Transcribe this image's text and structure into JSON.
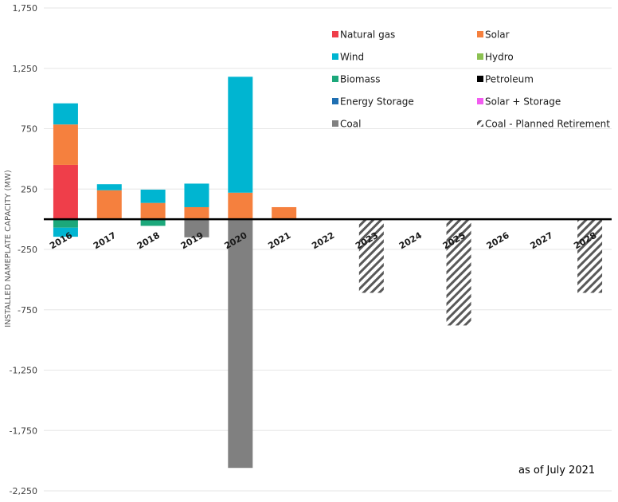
{
  "chart_data": {
    "type": "bar",
    "stacked": true,
    "ylabel": "INSTALLED NAMEPLATE CAPACITY (MW)",
    "xlabel": "",
    "ylim": [
      -2250,
      1750
    ],
    "yticks": [
      1750,
      1250,
      750,
      250,
      -250,
      -750,
      -1250,
      -1750,
      -2250
    ],
    "ytick_labels": [
      "1,750",
      "1,250",
      "750",
      "250",
      "-250",
      "-750",
      "-1,250",
      "-1,750",
      "-2,250"
    ],
    "grid": true,
    "legend_position": "top-right",
    "annotation": "as of July 2021",
    "categories": [
      "2016",
      "2017",
      "2018",
      "2019",
      "2020",
      "2021",
      "2022",
      "2023",
      "2024",
      "2025",
      "2026",
      "2027",
      "2028"
    ],
    "series": [
      {
        "name": "Natural gas",
        "color": "#EF3E4A",
        "pattern": "solid",
        "values": [
          450,
          0,
          0,
          0,
          0,
          0,
          0,
          0,
          0,
          0,
          0,
          0,
          0
        ]
      },
      {
        "name": "Solar",
        "color": "#F5803E",
        "pattern": "solid",
        "values": [
          335,
          240,
          135,
          100,
          220,
          100,
          0,
          0,
          0,
          0,
          0,
          0,
          0
        ]
      },
      {
        "name": "Wind",
        "color": "#00B5D1",
        "pattern": "solid",
        "values": [
          175,
          50,
          110,
          195,
          960,
          0,
          0,
          0,
          0,
          0,
          0,
          0,
          0
        ]
      },
      {
        "name": "Hydro",
        "color": "#8CC152",
        "pattern": "solid",
        "values": [
          0,
          0,
          0,
          0,
          0,
          0,
          0,
          0,
          0,
          0,
          0,
          0,
          0
        ]
      },
      {
        "name": "Biomass",
        "color": "#1CA87B",
        "pattern": "solid",
        "values": [
          -70,
          0,
          -55,
          0,
          0,
          0,
          0,
          0,
          0,
          0,
          0,
          0,
          0
        ]
      },
      {
        "name": "Petroleum",
        "color": "#000000",
        "pattern": "solid",
        "values": [
          0,
          0,
          0,
          0,
          0,
          0,
          0,
          0,
          0,
          0,
          0,
          0,
          0
        ]
      },
      {
        "name": "Energy Storage",
        "color": "#1F6FB2",
        "pattern": "solid",
        "values": [
          0,
          0,
          0,
          0,
          0,
          0,
          0,
          0,
          0,
          0,
          0,
          0,
          0
        ]
      },
      {
        "name": "Solar + Storage",
        "color": "#F25CF0",
        "pattern": "solid",
        "values": [
          0,
          0,
          0,
          0,
          0,
          0,
          0,
          0,
          0,
          0,
          0,
          0,
          0
        ]
      },
      {
        "name": "Coal",
        "color": "#808080",
        "pattern": "solid",
        "values": [
          0,
          0,
          0,
          -150,
          -2060,
          0,
          0,
          0,
          0,
          0,
          0,
          0,
          0
        ]
      },
      {
        "name": "Coal - Planned Retirement",
        "color": "#595959",
        "pattern": "hatch",
        "values": [
          0,
          0,
          0,
          0,
          0,
          0,
          0,
          -610,
          0,
          -880,
          0,
          0,
          -610
        ]
      }
    ],
    "extra_segments": [
      {
        "series": "Wind",
        "category": "2016",
        "start": -70,
        "value": -75
      }
    ]
  }
}
